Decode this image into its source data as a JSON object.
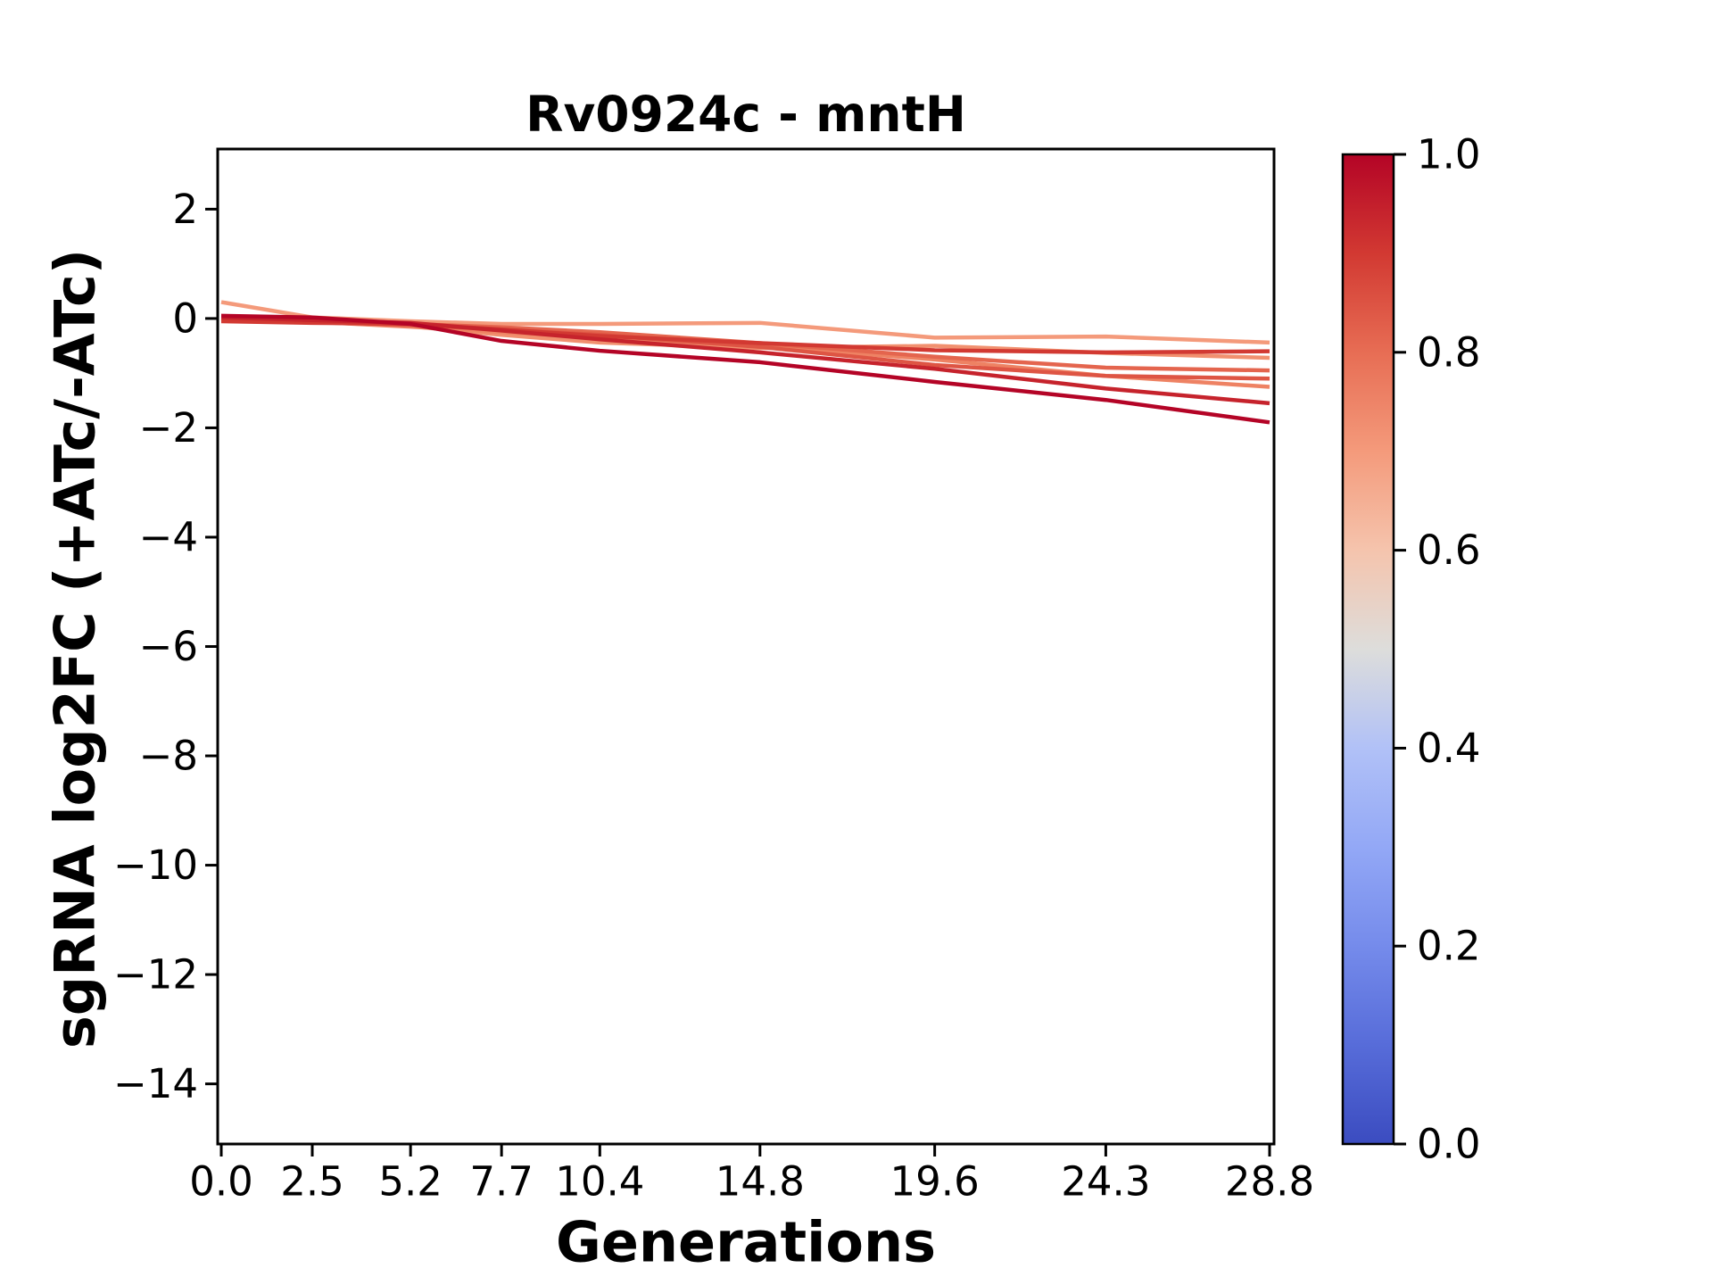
{
  "figure": {
    "background": "#ffffff"
  },
  "chart_data": {
    "type": "line",
    "title": "Rv0924c - mntH",
    "xlabel": "Generations",
    "ylabel": "sgRNA log2FC (+ATc/-ATc)",
    "x": [
      0.0,
      2.5,
      5.2,
      7.7,
      10.4,
      14.8,
      19.6,
      24.3,
      28.8
    ],
    "xtick_labels": [
      "0.0",
      "2.5",
      "5.2",
      "7.7",
      "10.4",
      "14.8",
      "19.6",
      "24.3",
      "28.8"
    ],
    "ytick_values": [
      2,
      0,
      -2,
      -4,
      -6,
      -8,
      -10,
      -12,
      -14
    ],
    "ytick_labels": [
      "2",
      "0",
      "−2",
      "−4",
      "−6",
      "−8",
      "−10",
      "−12",
      "−14"
    ],
    "xlim": [
      -0.1,
      29.0
    ],
    "ylim": [
      -15.1,
      3.1
    ],
    "grid": false,
    "legend_position": "colorbar-right",
    "series": [
      {
        "cmap_value": 0.7,
        "color": "#f49a7b",
        "y": [
          0.3,
          0.02,
          -0.05,
          -0.1,
          -0.1,
          -0.08,
          -0.35,
          -0.33,
          -0.44
        ]
      },
      {
        "cmap_value": 0.72,
        "color": "#f1906f",
        "y": [
          0.0,
          -0.06,
          -0.14,
          -0.3,
          -0.44,
          -0.54,
          -0.5,
          -0.63,
          -0.72
        ]
      },
      {
        "cmap_value": 0.75,
        "color": "#ee8263",
        "y": [
          -0.02,
          -0.06,
          -0.15,
          -0.25,
          -0.35,
          -0.5,
          -0.75,
          -1.05,
          -1.25
        ]
      },
      {
        "cmap_value": 0.82,
        "color": "#e4654e",
        "y": [
          0.0,
          -0.04,
          -0.1,
          -0.16,
          -0.25,
          -0.45,
          -0.7,
          -0.9,
          -0.95
        ]
      },
      {
        "cmap_value": 0.85,
        "color": "#de5544",
        "y": [
          -0.02,
          -0.05,
          -0.12,
          -0.2,
          -0.3,
          -0.52,
          -0.85,
          -1.05,
          -1.1
        ]
      },
      {
        "cmap_value": 0.9,
        "color": "#d23932",
        "y": [
          -0.05,
          -0.08,
          -0.1,
          -0.2,
          -0.32,
          -0.45,
          -0.58,
          -0.62,
          -0.6
        ]
      },
      {
        "cmap_value": 0.94,
        "color": "#c6232c",
        "y": [
          0.02,
          -0.03,
          -0.08,
          -0.22,
          -0.38,
          -0.62,
          -0.92,
          -1.28,
          -1.55
        ]
      },
      {
        "cmap_value": 1.0,
        "color": "#b40426",
        "y": [
          0.05,
          0.02,
          -0.1,
          -0.41,
          -0.59,
          -0.8,
          -1.16,
          -1.49,
          -1.9
        ]
      }
    ],
    "colorbar": {
      "cmap": "coolwarm",
      "min": 0.0,
      "max": 1.0,
      "tick_values": [
        0.0,
        0.2,
        0.4,
        0.6,
        0.8,
        1.0
      ],
      "tick_labels": [
        "0.0",
        "0.2",
        "0.4",
        "0.6",
        "0.8",
        "1.0"
      ],
      "gradient_stops": [
        {
          "t": 0.0,
          "color": "#3b4cc0"
        },
        {
          "t": 0.1,
          "color": "#576cd9"
        },
        {
          "t": 0.2,
          "color": "#758beb"
        },
        {
          "t": 0.3,
          "color": "#93a8f6"
        },
        {
          "t": 0.4,
          "color": "#b1c1f7"
        },
        {
          "t": 0.5,
          "color": "#dddddb"
        },
        {
          "t": 0.6,
          "color": "#f5c4ad"
        },
        {
          "t": 0.7,
          "color": "#f49a7b"
        },
        {
          "t": 0.8,
          "color": "#e76d54"
        },
        {
          "t": 0.9,
          "color": "#d23932"
        },
        {
          "t": 1.0,
          "color": "#b40426"
        }
      ]
    }
  }
}
